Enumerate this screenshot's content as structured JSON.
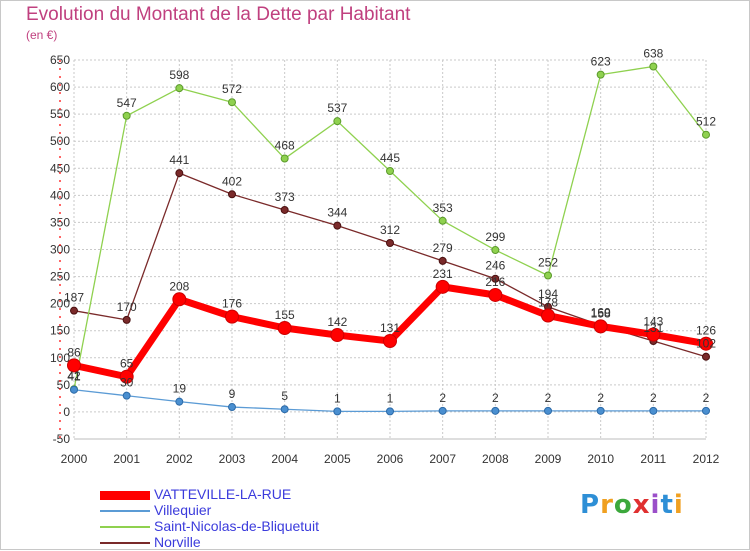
{
  "header": {
    "title": "Evolution du Montant de la Dette par Habitant",
    "unit": "(en €)"
  },
  "logo": {
    "text": "Proxiti",
    "colors": [
      "#2e8fd6",
      "#f0a020",
      "#3ca83c",
      "#e03030",
      "#9b4fc9",
      "#2e8fd6",
      "#f0a020"
    ]
  },
  "chart_data": {
    "type": "line",
    "x": [
      2000,
      2001,
      2002,
      2003,
      2004,
      2005,
      2006,
      2007,
      2008,
      2009,
      2010,
      2011,
      2012
    ],
    "x_tick_labels": [
      "2000",
      "2001",
      "2002",
      "2003",
      "2004",
      "2005",
      "2006",
      "2007",
      "2008",
      "2009",
      "2010",
      "2011",
      "2012"
    ],
    "ylim": [
      -50,
      650
    ],
    "y_ticks": [
      -50,
      0,
      50,
      100,
      150,
      200,
      250,
      300,
      350,
      400,
      450,
      500,
      550,
      600,
      650
    ],
    "y_tick_labels": [
      "-50",
      "0",
      "50",
      "100",
      "150",
      "200",
      "250",
      "300",
      "350",
      "400",
      "450",
      "500",
      "550",
      "600",
      "650"
    ],
    "grid": true,
    "legend_position": "bottom-left",
    "series": [
      {
        "name": "VATTEVILLE-LA-RUE",
        "color": "#ff0000",
        "values": [
          86,
          65,
          208,
          176,
          155,
          142,
          131,
          231,
          216,
          178,
          158,
          143,
          126
        ],
        "labels": [
          "86",
          "65",
          "208",
          "176",
          "155",
          "142",
          "131",
          "231",
          "216",
          "178",
          "158",
          "143",
          "126"
        ]
      },
      {
        "name": "Villequier",
        "color": "#5b9bd5",
        "values": [
          41,
          30,
          19,
          9,
          5,
          1,
          1,
          2,
          2,
          2,
          2,
          2,
          2
        ],
        "labels": [
          "41",
          "30",
          "19",
          "9",
          "5",
          "1",
          "1",
          "2",
          "2",
          "2",
          "2",
          "2",
          "2"
        ]
      },
      {
        "name": "Saint-Nicolas-de-Bliquetuit",
        "color": "#8fd14f",
        "values": [
          42,
          547,
          598,
          572,
          468,
          537,
          445,
          353,
          299,
          252,
          623,
          638,
          512
        ],
        "labels": [
          "42",
          "547",
          "598",
          "572",
          "468",
          "537",
          "445",
          "353",
          "299",
          "252",
          "623",
          "638",
          "512"
        ]
      },
      {
        "name": "Norville",
        "color": "#7a2a2a",
        "values": [
          187,
          170,
          441,
          402,
          373,
          344,
          312,
          279,
          246,
          194,
          160,
          131,
          102
        ],
        "labels": [
          "187",
          "170",
          "441",
          "402",
          "373",
          "344",
          "312",
          "279",
          "246",
          "194",
          "160",
          "131",
          "102"
        ]
      }
    ]
  }
}
